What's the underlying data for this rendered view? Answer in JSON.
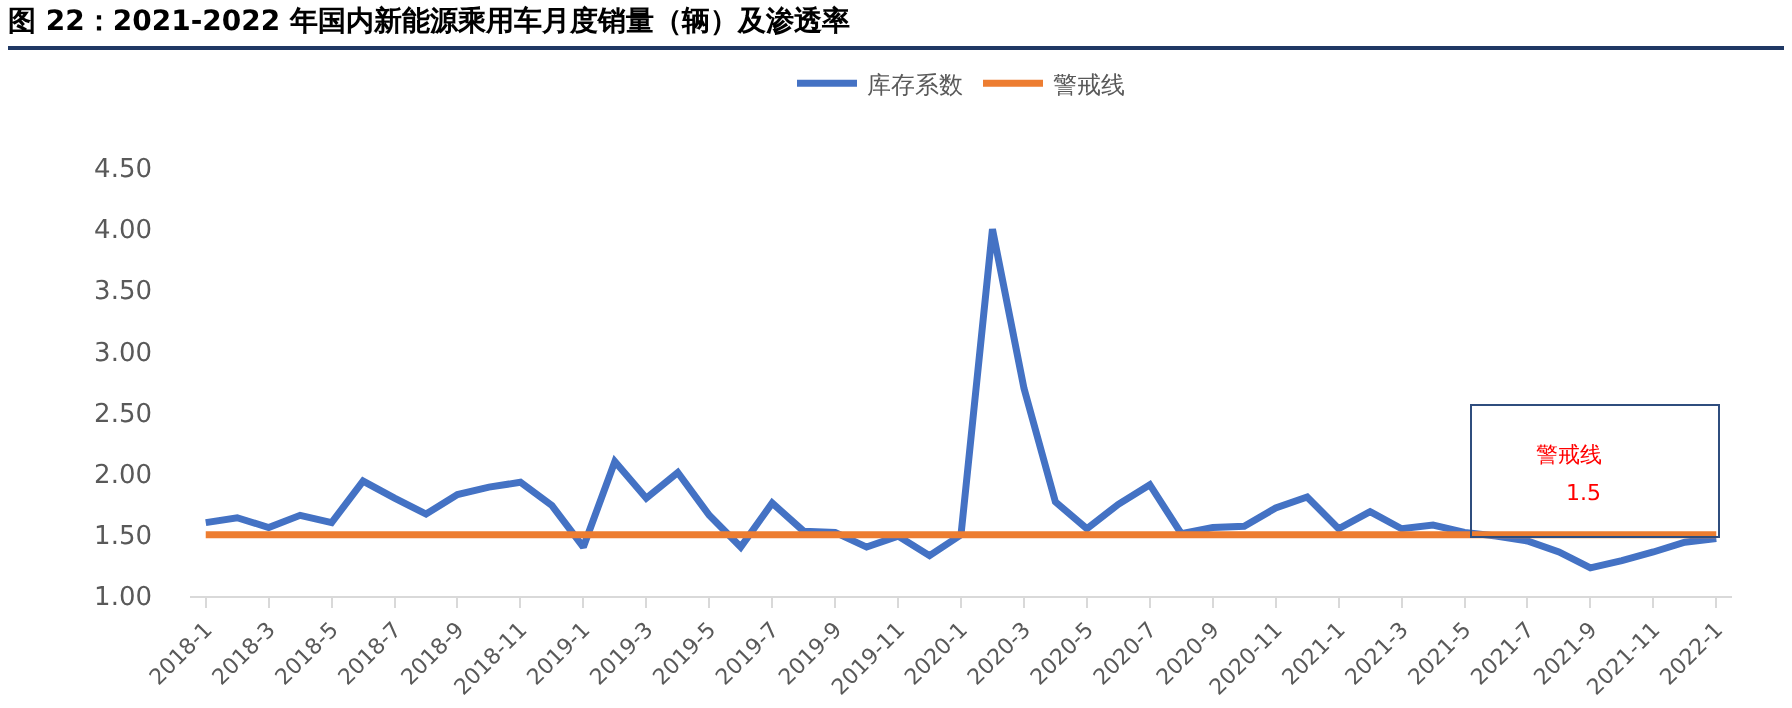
{
  "chart_data": {
    "type": "line",
    "title": "图 22：2021-2022 年国内新能源乘用车月度销量（辆）及渗透率",
    "categories": [
      "2018-1",
      null,
      "2018-3",
      null,
      "2018-5",
      null,
      "2018-7",
      null,
      "2018-9",
      null,
      "2018-11",
      null,
      "2019-1",
      null,
      "2019-3",
      null,
      "2019-5",
      null,
      "2019-7",
      null,
      "2019-9",
      null,
      "2019-11",
      null,
      "2020-1",
      null,
      "2020-3",
      null,
      "2020-5",
      null,
      "2020-7",
      null,
      "2020-9",
      null,
      "2020-11",
      null,
      "2021-1",
      null,
      "2021-3",
      null,
      "2021-5",
      null,
      "2021-7",
      null,
      "2021-9",
      null,
      "2021-11",
      null,
      "2022-1"
    ],
    "series": [
      {
        "name": "库存系数",
        "color": "#4472c4",
        "values": [
          1.6,
          1.64,
          1.56,
          1.66,
          1.6,
          1.94,
          1.8,
          1.67,
          1.83,
          1.89,
          1.93,
          1.74,
          1.4,
          2.1,
          1.8,
          2.01,
          1.66,
          1.4,
          1.76,
          1.53,
          1.52,
          1.4,
          1.49,
          1.33,
          1.5,
          4.0,
          2.7,
          1.77,
          1.55,
          1.75,
          1.91,
          1.51,
          1.56,
          1.57,
          1.72,
          1.81,
          1.55,
          1.69,
          1.55,
          1.58,
          1.52,
          1.49,
          1.45,
          1.36,
          1.23,
          1.29,
          1.36,
          1.44,
          1.47
        ]
      },
      {
        "name": "警戒线",
        "color": "#ed7d31",
        "values": [
          1.5,
          1.5,
          1.5,
          1.5,
          1.5,
          1.5,
          1.5,
          1.5,
          1.5,
          1.5,
          1.5,
          1.5,
          1.5,
          1.5,
          1.5,
          1.5,
          1.5,
          1.5,
          1.5,
          1.5,
          1.5,
          1.5,
          1.5,
          1.5,
          1.5,
          1.5,
          1.5,
          1.5,
          1.5,
          1.5,
          1.5,
          1.5,
          1.5,
          1.5,
          1.5,
          1.5,
          1.5,
          1.5,
          1.5,
          1.5,
          1.5,
          1.5,
          1.5,
          1.5,
          1.5,
          1.5,
          1.5,
          1.5,
          1.5
        ]
      }
    ],
    "annotations": [
      "警戒线",
      "1.5"
    ],
    "ylim": [
      1,
      4.5
    ],
    "yticks": [
      {
        "value": 1,
        "label": "1.00"
      },
      {
        "value": 1.5,
        "label": "1.50"
      },
      {
        "value": 2,
        "label": "2.00"
      },
      {
        "value": 2.5,
        "label": "2.50"
      },
      {
        "value": 3,
        "label": "3.00"
      },
      {
        "value": 3.5,
        "label": "3.50"
      },
      {
        "value": 4,
        "label": "4.00"
      },
      {
        "value": 4.5,
        "label": "4.50"
      }
    ],
    "grid": false,
    "legend": "top",
    "marker": "none",
    "line_style": "solid"
  }
}
